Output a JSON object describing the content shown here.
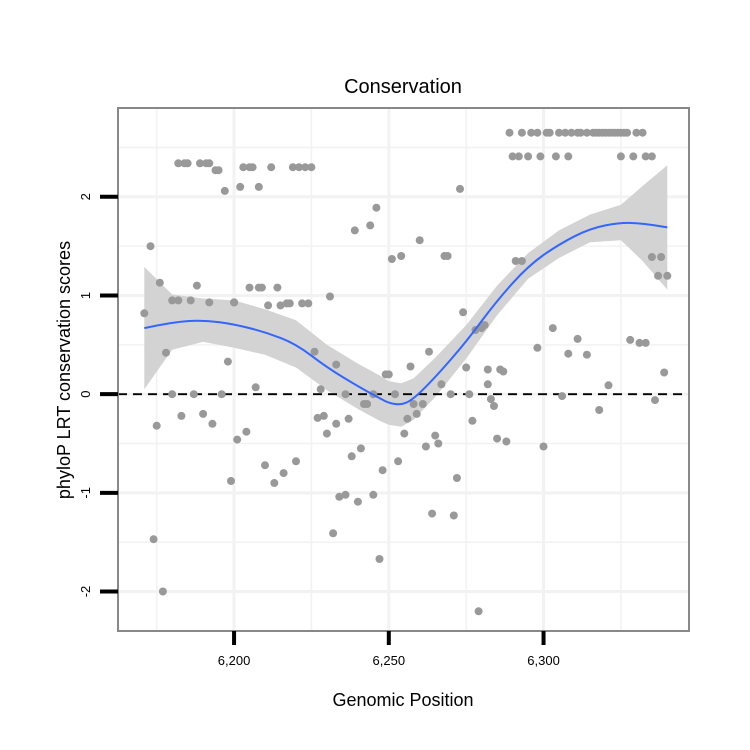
{
  "chart_data": {
    "type": "scatter",
    "title": "Conservation",
    "xlabel": "Genomic Position",
    "ylabel": "phyloP LRT conservation scores",
    "xlim": [
      6162.5,
      6347.0
    ],
    "ylim": [
      -2.4,
      2.9
    ],
    "x_ticks": [
      6200,
      6250,
      6300
    ],
    "x_tick_labels": [
      "6,200",
      "6,250",
      "6,300"
    ],
    "y_ticks": [
      -2,
      -1,
      0,
      1,
      2
    ],
    "y_tick_labels": [
      "-2",
      "-1",
      "0",
      "1",
      "2"
    ],
    "grid": true,
    "legend": "none",
    "reference_line": {
      "y": 0,
      "style": "dashed",
      "color": "#000000"
    },
    "colors": {
      "points": "#999999",
      "smooth_line": "#3366FF",
      "confidence_band": "#d3d3d3",
      "panel_border": "#888888",
      "grid": "#f2f2f2"
    },
    "points": [
      [
        6171,
        0.82
      ],
      [
        6173,
        1.5
      ],
      [
        6174,
        -1.47
      ],
      [
        6175,
        -0.32
      ],
      [
        6176,
        1.13
      ],
      [
        6177,
        -2.0
      ],
      [
        6178,
        0.42
      ],
      [
        6180,
        0.0
      ],
      [
        6180,
        0.95
      ],
      [
        6182,
        0.95
      ],
      [
        6182,
        2.34
      ],
      [
        6183,
        -0.22
      ],
      [
        6184,
        2.34
      ],
      [
        6185,
        2.34
      ],
      [
        6186,
        0.95
      ],
      [
        6187,
        0.0
      ],
      [
        6188,
        1.1
      ],
      [
        6189,
        2.34
      ],
      [
        6190,
        -0.2
      ],
      [
        6191,
        2.34
      ],
      [
        6192,
        0.93
      ],
      [
        6192,
        2.34
      ],
      [
        6193,
        -0.3
      ],
      [
        6194,
        2.27
      ],
      [
        6195,
        2.27
      ],
      [
        6196,
        0.0
      ],
      [
        6197,
        2.06
      ],
      [
        6198,
        0.33
      ],
      [
        6199,
        -0.88
      ],
      [
        6200,
        0.93
      ],
      [
        6200,
        0.93
      ],
      [
        6201,
        -0.46
      ],
      [
        6202,
        2.1
      ],
      [
        6203,
        2.3
      ],
      [
        6204,
        -0.38
      ],
      [
        6205,
        2.3
      ],
      [
        6205,
        1.08
      ],
      [
        6206,
        2.3
      ],
      [
        6207,
        0.07
      ],
      [
        6208,
        1.08
      ],
      [
        6208,
        2.1
      ],
      [
        6209,
        1.08
      ],
      [
        6210,
        -0.72
      ],
      [
        6211,
        0.9
      ],
      [
        6212,
        2.3
      ],
      [
        6213,
        -0.9
      ],
      [
        6214,
        1.08
      ],
      [
        6215,
        0.9
      ],
      [
        6216,
        -0.8
      ],
      [
        6217,
        0.92
      ],
      [
        6218,
        0.92
      ],
      [
        6219,
        2.3
      ],
      [
        6220,
        -0.68
      ],
      [
        6221,
        2.3
      ],
      [
        6222,
        0.92
      ],
      [
        6223,
        2.3
      ],
      [
        6224,
        0.92
      ],
      [
        6225,
        2.3
      ],
      [
        6226,
        0.43
      ],
      [
        6227,
        -0.24
      ],
      [
        6228,
        0.05
      ],
      [
        6229,
        -0.22
      ],
      [
        6230,
        -0.4
      ],
      [
        6231,
        0.99
      ],
      [
        6232,
        -1.41
      ],
      [
        6233,
        -0.3
      ],
      [
        6233,
        0.3
      ],
      [
        6234,
        -1.04
      ],
      [
        6236,
        -1.02
      ],
      [
        6236,
        0.0
      ],
      [
        6237,
        -0.25
      ],
      [
        6238,
        -0.63
      ],
      [
        6239,
        1.66
      ],
      [
        6240,
        -1.09
      ],
      [
        6241,
        -0.55
      ],
      [
        6242,
        -0.1
      ],
      [
        6243,
        -0.1
      ],
      [
        6244,
        1.71
      ],
      [
        6245,
        -1.02
      ],
      [
        6245,
        0.0
      ],
      [
        6246,
        1.89
      ],
      [
        6247,
        -1.67
      ],
      [
        6248,
        -0.77
      ],
      [
        6249,
        0.2
      ],
      [
        6250,
        0.2
      ],
      [
        6251,
        1.37
      ],
      [
        6252,
        0.0
      ],
      [
        6253,
        -0.68
      ],
      [
        6254,
        1.4
      ],
      [
        6255,
        -0.4
      ],
      [
        6256,
        -0.25
      ],
      [
        6257,
        0.28
      ],
      [
        6258,
        -0.1
      ],
      [
        6259,
        -0.2
      ],
      [
        6260,
        1.56
      ],
      [
        6261,
        -0.1
      ],
      [
        6262,
        -0.53
      ],
      [
        6263,
        0.43
      ],
      [
        6264,
        -1.21
      ],
      [
        6265,
        -0.42
      ],
      [
        6266,
        -0.5
      ],
      [
        6267,
        0.1
      ],
      [
        6268,
        1.4
      ],
      [
        6269,
        1.4
      ],
      [
        6270,
        0.0
      ],
      [
        6271,
        -1.23
      ],
      [
        6272,
        -0.85
      ],
      [
        6273,
        2.08
      ],
      [
        6274,
        0.83
      ],
      [
        6275,
        0.27
      ],
      [
        6276,
        0.0
      ],
      [
        6277,
        -0.27
      ],
      [
        6278,
        0.65
      ],
      [
        6279,
        -2.2
      ],
      [
        6280,
        0.67
      ],
      [
        6281,
        0.7
      ],
      [
        6282,
        0.25
      ],
      [
        6282,
        0.1
      ],
      [
        6283,
        -0.05
      ],
      [
        6284,
        -0.12
      ],
      [
        6285,
        -0.45
      ],
      [
        6286,
        0.25
      ],
      [
        6287,
        0.23
      ],
      [
        6288,
        -0.48
      ],
      [
        6289,
        2.65
      ],
      [
        6290,
        2.41
      ],
      [
        6291,
        1.35
      ],
      [
        6292,
        2.41
      ],
      [
        6293,
        1.35
      ],
      [
        6293,
        2.65
      ],
      [
        6295,
        2.41
      ],
      [
        6296,
        2.65
      ],
      [
        6298,
        2.65
      ],
      [
        6298,
        0.47
      ],
      [
        6299,
        2.41
      ],
      [
        6300,
        -0.53
      ],
      [
        6301,
        2.65
      ],
      [
        6302,
        2.65
      ],
      [
        6303,
        0.67
      ],
      [
        6304,
        2.41
      ],
      [
        6305,
        2.65
      ],
      [
        6306,
        -0.02
      ],
      [
        6307,
        2.65
      ],
      [
        6308,
        2.41
      ],
      [
        6308,
        0.41
      ],
      [
        6309,
        2.65
      ],
      [
        6311,
        2.65
      ],
      [
        6311,
        0.56
      ],
      [
        6312,
        2.65
      ],
      [
        6314,
        2.65
      ],
      [
        6314,
        0.4
      ],
      [
        6316,
        2.65
      ],
      [
        6317,
        2.65
      ],
      [
        6318,
        -0.16
      ],
      [
        6318,
        2.65
      ],
      [
        6319,
        2.65
      ],
      [
        6320,
        2.65
      ],
      [
        6321,
        0.09
      ],
      [
        6321,
        2.65
      ],
      [
        6322,
        2.65
      ],
      [
        6323,
        2.65
      ],
      [
        6324,
        2.65
      ],
      [
        6325,
        2.41
      ],
      [
        6325,
        2.65
      ],
      [
        6326,
        2.65
      ],
      [
        6327,
        2.65
      ],
      [
        6328,
        0.55
      ],
      [
        6329,
        2.41
      ],
      [
        6330,
        2.65
      ],
      [
        6331,
        0.52
      ],
      [
        6332,
        2.65
      ],
      [
        6333,
        2.41
      ],
      [
        6333,
        0.52
      ],
      [
        6335,
        1.39
      ],
      [
        6335,
        2.41
      ],
      [
        6336,
        -0.06
      ],
      [
        6337,
        1.2
      ],
      [
        6338,
        1.39
      ],
      [
        6339,
        0.22
      ],
      [
        6340,
        1.2
      ]
    ],
    "smooth": {
      "x": [
        6171,
        6180,
        6190,
        6200,
        6210,
        6220,
        6230,
        6240,
        6247,
        6250,
        6254,
        6258,
        6265,
        6275,
        6285,
        6295,
        6305,
        6315,
        6325,
        6332,
        6340
      ],
      "y": [
        0.67,
        0.73,
        0.75,
        0.71,
        0.63,
        0.51,
        0.27,
        0.08,
        -0.04,
        -0.09,
        -0.11,
        -0.05,
        0.17,
        0.53,
        0.95,
        1.3,
        1.52,
        1.68,
        1.74,
        1.73,
        1.69
      ],
      "lower": [
        0.05,
        0.45,
        0.53,
        0.47,
        0.4,
        0.27,
        0.04,
        -0.15,
        -0.27,
        -0.31,
        -0.33,
        -0.26,
        -0.03,
        0.36,
        0.8,
        1.17,
        1.38,
        1.54,
        1.56,
        1.35,
        1.06
      ],
      "upper": [
        1.29,
        1.01,
        0.97,
        0.95,
        0.86,
        0.75,
        0.5,
        0.31,
        0.19,
        0.13,
        0.11,
        0.16,
        0.37,
        0.7,
        1.1,
        1.43,
        1.66,
        1.82,
        1.92,
        2.11,
        2.32
      ]
    }
  }
}
